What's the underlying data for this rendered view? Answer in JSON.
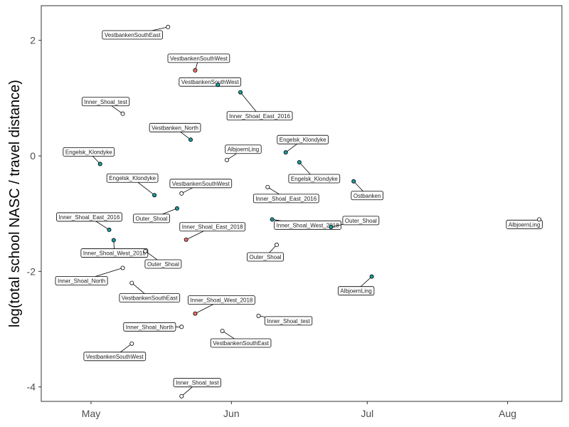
{
  "chart_data": {
    "type": "scatter",
    "title": "",
    "xlabel": "",
    "ylabel": "log(total school NASC / travel distance)",
    "x_tick_labels": [
      "May",
      "Jun",
      "Jul",
      "Aug"
    ],
    "x_ticks": [
      "2018-05-01",
      "2018-06-01",
      "2018-07-01",
      "2018-08-01"
    ],
    "xlim": [
      "2018-04-20",
      "2018-08-13"
    ],
    "ylim": [
      -4.25,
      2.6
    ],
    "y_ticks": [
      2,
      0,
      -2,
      -4
    ],
    "y_tick_labels": [
      "2",
      "0",
      "-2",
      "-4"
    ],
    "grid": false,
    "legend": "none",
    "colors": {
      "empty": "#ffffff",
      "teal": "#1a9b9b",
      "red": "#e8736a"
    },
    "points": [
      {
        "label": "VestbankenSouthEast",
        "x": "2018-05-18",
        "y": 2.23,
        "fill": "empty"
      },
      {
        "label": "VestbankenSouthWest",
        "x": "2018-05-24",
        "y": 1.48,
        "fill": "red"
      },
      {
        "label": "VestbankenSouthWest",
        "x": "2018-05-29",
        "y": 1.23,
        "fill": "teal"
      },
      {
        "label": "Inner_Shoal_East_2016",
        "x": "2018-06-03",
        "y": 1.1,
        "fill": "teal"
      },
      {
        "label": "Inner_Shoal_test",
        "x": "2018-05-08",
        "y": 0.73,
        "fill": "empty"
      },
      {
        "label": "Vestbanken_North",
        "x": "2018-05-23",
        "y": 0.28,
        "fill": "teal"
      },
      {
        "label": "Engelsk_Klondyke",
        "x": "2018-05-03",
        "y": -0.14,
        "fill": "teal"
      },
      {
        "label": "AlbjoernLing",
        "x": "2018-05-31",
        "y": -0.07,
        "fill": "empty"
      },
      {
        "label": "Engelsk_Klondyke",
        "x": "2018-06-13",
        "y": 0.06,
        "fill": "teal"
      },
      {
        "label": "Engelsk_Klondyke",
        "x": "2018-06-16",
        "y": -0.11,
        "fill": "teal"
      },
      {
        "label": "Engelsk_Klondyke",
        "x": "2018-05-15",
        "y": -0.68,
        "fill": "teal"
      },
      {
        "label": "VestbankenSouthWest",
        "x": "2018-05-21",
        "y": -0.65,
        "fill": "empty"
      },
      {
        "label": "Inner_Shoal_East_2016",
        "x": "2018-06-09",
        "y": -0.54,
        "fill": "empty"
      },
      {
        "label": "Ostbanken",
        "x": "2018-06-28",
        "y": -0.44,
        "fill": "teal"
      },
      {
        "label": "Outer_Shoal",
        "x": "2018-05-20",
        "y": -0.91,
        "fill": "teal"
      },
      {
        "label": "Inner_Shoal_East_2016",
        "x": "2018-05-05",
        "y": -1.28,
        "fill": "teal"
      },
      {
        "label": "Inner_Shoal_East_2018",
        "x": "2018-05-22",
        "y": -1.45,
        "fill": "red"
      },
      {
        "label": "Inner_Shoal_West_2018",
        "x": "2018-05-06",
        "y": -1.46,
        "fill": "teal"
      },
      {
        "label": "Inner_Shoal_West_2018",
        "x": "2018-06-10",
        "y": -1.1,
        "fill": "teal"
      },
      {
        "label": "Outer_Shoal",
        "x": "2018-06-23",
        "y": -1.23,
        "fill": "teal"
      },
      {
        "label": "AlbjoernLing",
        "x": "2018-08-08",
        "y": -1.1,
        "fill": "empty"
      },
      {
        "label": "Outer_Shoal",
        "x": "2018-05-13",
        "y": -1.65,
        "fill": "empty"
      },
      {
        "label": "Outer_Shoal",
        "x": "2018-06-11",
        "y": -1.54,
        "fill": "empty"
      },
      {
        "label": "Inner_Shoal_North",
        "x": "2018-05-08",
        "y": -1.94,
        "fill": "empty"
      },
      {
        "label": "VestbankenSouthEast",
        "x": "2018-05-10",
        "y": -2.2,
        "fill": "empty"
      },
      {
        "label": "AlbjoernLing",
        "x": "2018-07-02",
        "y": -2.09,
        "fill": "teal"
      },
      {
        "label": "Inner_Shoal_West_2018",
        "x": "2018-05-24",
        "y": -2.73,
        "fill": "red"
      },
      {
        "label": "Inner_Shoal_test",
        "x": "2018-06-07",
        "y": -2.77,
        "fill": "empty"
      },
      {
        "label": "Inner_Shoal_North",
        "x": "2018-05-21",
        "y": -2.96,
        "fill": "empty"
      },
      {
        "label": "VestbankenSouthEast",
        "x": "2018-05-30",
        "y": -3.03,
        "fill": "empty"
      },
      {
        "label": "VestbankenSouthWest",
        "x": "2018-05-10",
        "y": -3.25,
        "fill": "empty"
      },
      {
        "label": "Inner_Shoal_test",
        "x": "2018-05-21",
        "y": -4.16,
        "fill": "empty"
      }
    ]
  }
}
